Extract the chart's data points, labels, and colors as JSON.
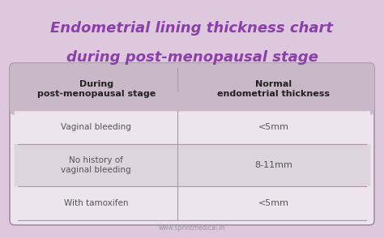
{
  "title_line1": "Endometrial lining thickness chart",
  "title_line2": "during post-menopausal stage",
  "title_color": "#8B3FA8",
  "background_color": "#DEC8DE",
  "table_bg_color": "#EDE5ED",
  "header_bg_color": "#C8B8C8",
  "row1_color": "#EDE5ED",
  "row2_color": "#DDD5DD",
  "row3_color": "#EDE5ED",
  "divider_color": "#A898A8",
  "header_col1": "During\npost-menopausal stage",
  "header_col2": "Normal\nendometrial thickness",
  "rows": [
    [
      "Vaginal bleeding",
      "<5mm"
    ],
    [
      "No history of\nvaginal bleeding",
      "8-11mm"
    ],
    [
      "With tamoxifen",
      "<5mm"
    ]
  ],
  "watermark": "www.sprintmedical.in",
  "table_border_color": "#A090A0",
  "text_color_header": "#222222",
  "text_color_row": "#555555",
  "col_split": 0.46
}
